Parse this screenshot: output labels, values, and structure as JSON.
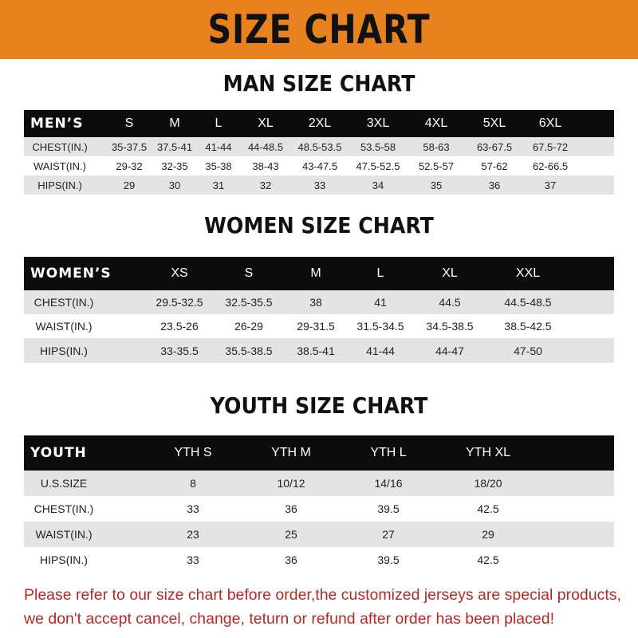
{
  "banner": {
    "title": "SIZE CHART",
    "color": "#e8821f"
  },
  "men": {
    "title": "MAN SIZE CHART",
    "header": [
      "MEN’S",
      "S",
      "M",
      "L",
      "XL",
      "2XL",
      "3XL",
      "4XL",
      "5XL",
      "6XL"
    ],
    "rows": [
      [
        "CHEST(IN.)",
        "35-37.5",
        "37.5-41",
        "41-44",
        "44-48.5",
        "48.5-53.5",
        "53.5-58",
        "58-63",
        "63-67.5",
        "67.5-72"
      ],
      [
        "WAIST(IN.)",
        "29-32",
        "32-35",
        "35-38",
        "38-43",
        "43-47.5",
        "47.5-52.5",
        "52.5-57",
        "57-62",
        "62-66.5"
      ],
      [
        "HIPS(IN.)",
        "29",
        "30",
        "31",
        "32",
        "33",
        "34",
        "35",
        "36",
        "37"
      ]
    ]
  },
  "women": {
    "title": "WOMEN SIZE CHART",
    "header": [
      "WOMEN’S",
      "XS",
      "S",
      "M",
      "L",
      "XL",
      "XXL"
    ],
    "rows": [
      [
        "CHEST(IN.)",
        "29.5-32.5",
        "32.5-35.5",
        "38",
        "41",
        "44.5",
        "44.5-48.5"
      ],
      [
        "WAIST(IN.)",
        "23.5-26",
        "26-29",
        "29-31.5",
        "31.5-34.5",
        "34.5-38.5",
        "38.5-42.5"
      ],
      [
        "HIPS(IN.)",
        "33-35.5",
        "35.5-38.5",
        "38.5-41",
        "41-44",
        "44-47",
        "47-50"
      ]
    ]
  },
  "youth": {
    "title": "YOUTH SIZE CHART",
    "header": [
      "YOUTH",
      "YTH S",
      "YTH M",
      "YTH L",
      "YTH XL"
    ],
    "rows": [
      [
        "U.S.SIZE",
        "8",
        "10/12",
        "14/16",
        "18/20"
      ],
      [
        "CHEST(IN.)",
        "33",
        "36",
        "39.5",
        "42.5"
      ],
      [
        "WAIST(IN.)",
        "23",
        "25",
        "27",
        "29"
      ],
      [
        "HIPS(IN.)",
        "33",
        "36",
        "39.5",
        "42.5"
      ]
    ]
  },
  "footer": {
    "line1": "Please refer to our size chart before order,the customized jerseys are special products,",
    "line2": "we don't accept cancel, change, teturn or refund after order has been placed!"
  }
}
